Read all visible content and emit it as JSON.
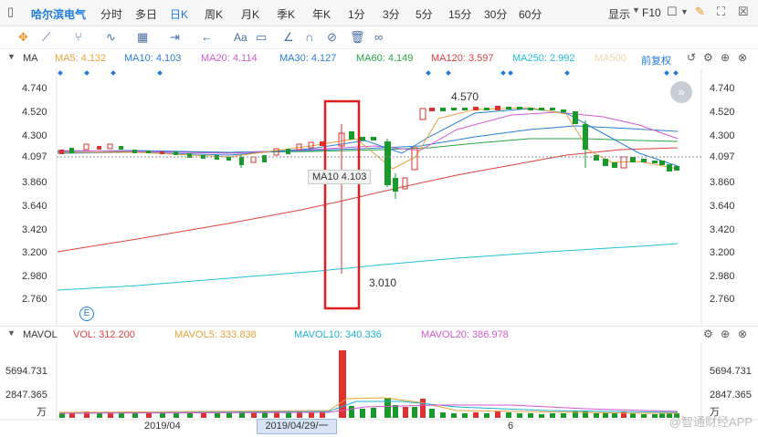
{
  "toolbar": {
    "stock_name": "哈尔滨电气",
    "periods": [
      "分时",
      "多日",
      "日K",
      "周K",
      "月K",
      "季K",
      "年K",
      "1分",
      "3分",
      "5分",
      "15分",
      "30分",
      "60分"
    ],
    "active_period": "日K",
    "display_label": "显示",
    "f10_label": "F10"
  },
  "drawing_tools": {
    "text_tool": "Aa"
  },
  "ma_bar": {
    "title": "MA",
    "items": [
      {
        "label": "MA5: 4.132",
        "color": "#e8a23a"
      },
      {
        "label": "MA10: 4.103",
        "color": "#2a7fd4"
      },
      {
        "label": "MA20: 4.114",
        "color": "#d45ad0"
      },
      {
        "label": "MA30: 4.127",
        "color": "#2a7fd4"
      },
      {
        "label": "MA60: 4.149",
        "color": "#28a745"
      },
      {
        "label": "MA120: 3.597",
        "color": "#e04040"
      },
      {
        "label": "MA250: 2.992",
        "color": "#20c0d8"
      },
      {
        "label": "MA500",
        "color": "#f5deb0"
      }
    ],
    "adjust_label": "前复权"
  },
  "price_axis": {
    "ticks": [
      "4.740",
      "4.520",
      "4.300",
      "4.097",
      "3.860",
      "3.640",
      "3.420",
      "3.200",
      "2.980",
      "2.760"
    ],
    "current": "4.097"
  },
  "annotations": {
    "high_label": "4.570",
    "low_label": "3.010",
    "ma_tooltip": "MA10 4.103"
  },
  "vol_bar": {
    "title": "MAVOL",
    "items": [
      {
        "label": "VOL: 312.200",
        "color": "#e04040"
      },
      {
        "label": "MAVOL5: 333.838",
        "color": "#e8a23a"
      },
      {
        "label": "MAVOL10: 340.336",
        "color": "#20b0d0"
      },
      {
        "label": "MAVOL20: 386.978",
        "color": "#d45ad0"
      }
    ],
    "ticks": [
      "5694.731",
      "2847.365",
      "万"
    ]
  },
  "dates": {
    "label_1": "2019/04",
    "selected": "2019/04/29/一",
    "label_2": "6"
  },
  "watermark": "@智通财经APP",
  "colors": {
    "up": "#e03030",
    "down": "#1a9a2a",
    "highlight": "#e02020"
  }
}
